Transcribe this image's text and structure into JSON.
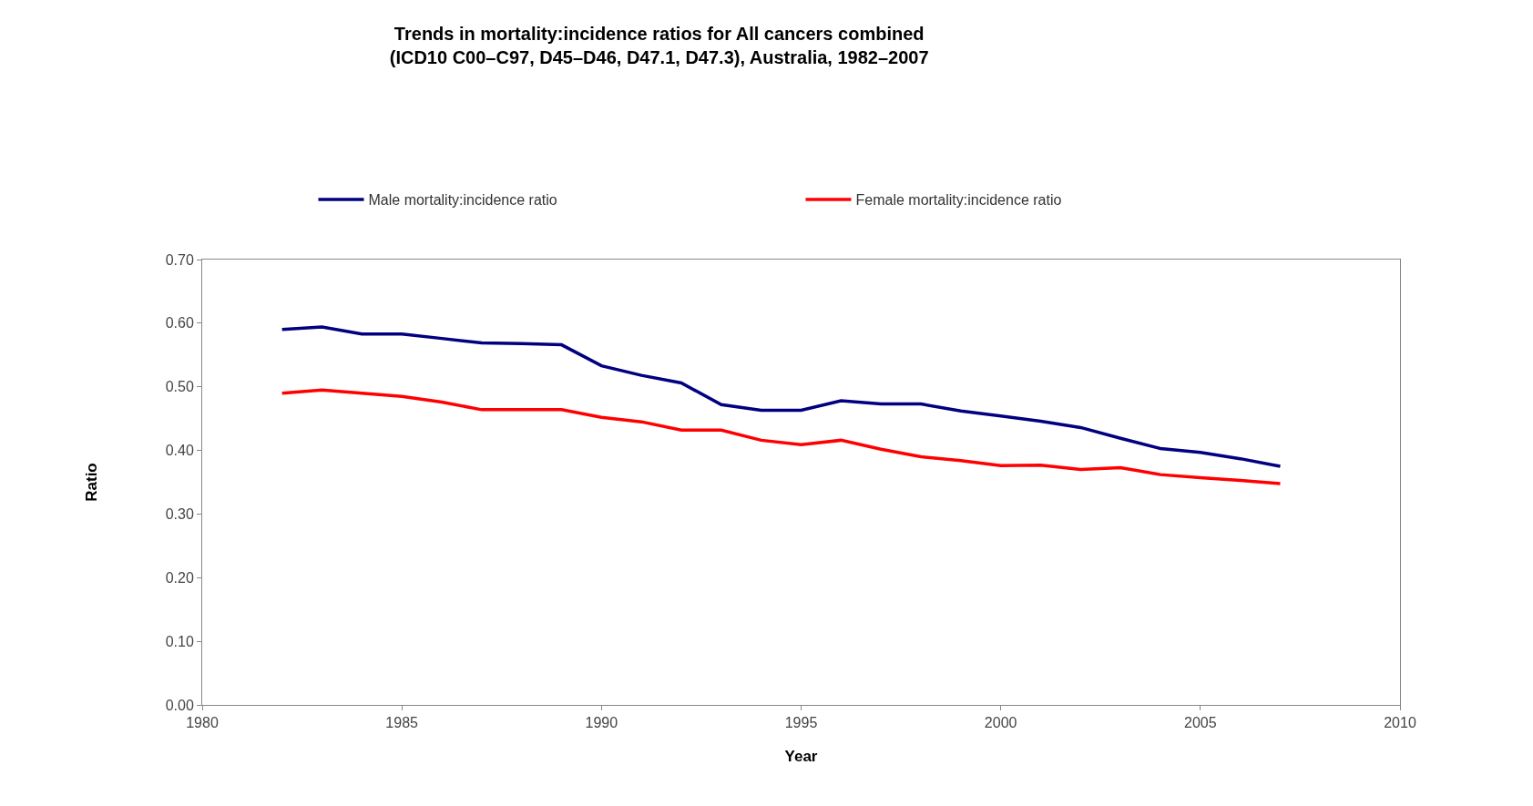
{
  "chart_data": {
    "type": "line",
    "title": "Trends in mortality:incidence ratios for All cancers combined\n(ICD10 C00–C97, D45–D46, D47.1, D47.3), Australia, 1982–2007",
    "xlabel": "Year",
    "ylabel": "Ratio",
    "x": [
      1982,
      1983,
      1984,
      1985,
      1986,
      1987,
      1988,
      1989,
      1990,
      1991,
      1992,
      1993,
      1994,
      1995,
      1996,
      1997,
      1998,
      1999,
      2000,
      2001,
      2002,
      2003,
      2004,
      2005,
      2006,
      2007
    ],
    "series": [
      {
        "name": "Male mortality:incidence ratio",
        "color": "#000080",
        "values": [
          0.59,
          0.594,
          0.583,
          0.583,
          0.576,
          0.569,
          0.568,
          0.566,
          0.533,
          0.518,
          0.506,
          0.472,
          0.463,
          0.463,
          0.478,
          0.473,
          0.473,
          0.462,
          0.454,
          0.446,
          0.436,
          0.419,
          0.403,
          0.397,
          0.387,
          0.375
        ]
      },
      {
        "name": "Female mortality:incidence ratio",
        "color": "#ff0000",
        "values": [
          0.49,
          0.495,
          0.49,
          0.485,
          0.476,
          0.464,
          0.464,
          0.464,
          0.452,
          0.445,
          0.432,
          0.432,
          0.416,
          0.409,
          0.416,
          0.402,
          0.39,
          0.384,
          0.376,
          0.377,
          0.37,
          0.373,
          0.362,
          0.357,
          0.353,
          0.348
        ]
      }
    ],
    "xlim": [
      1980,
      2010
    ],
    "xticks": [
      1980,
      1985,
      1990,
      1995,
      2000,
      2005,
      2010
    ],
    "ylim": [
      0,
      0.7
    ],
    "yticks": [
      {
        "value": 0,
        "label": "0.00"
      },
      {
        "value": 0.1,
        "label": "0.10"
      },
      {
        "value": 0.2,
        "label": "0.20"
      },
      {
        "value": 0.3,
        "label": "0.30"
      },
      {
        "value": 0.4,
        "label": "0.40"
      },
      {
        "value": 0.5,
        "label": "0.50"
      },
      {
        "value": 0.6,
        "label": "0.60"
      },
      {
        "value": 0.7,
        "label": "0.70"
      }
    ],
    "grid": false,
    "legend": "top",
    "marker": "none",
    "line_style": "solid"
  }
}
